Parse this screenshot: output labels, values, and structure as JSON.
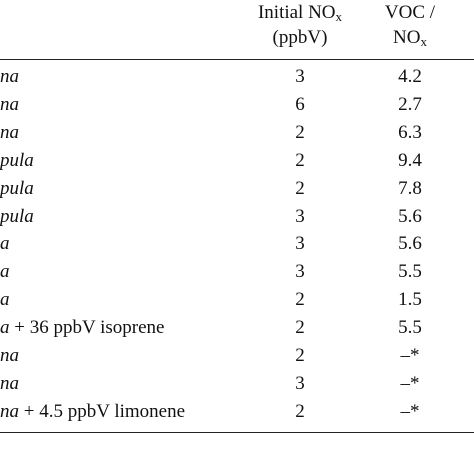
{
  "table": {
    "header": {
      "nox": {
        "text": "Initial NO",
        "sub": "x",
        "unit": "(ppbV)"
      },
      "ratio": {
        "line1": "VOC /",
        "text": "NO",
        "sub": "x"
      }
    },
    "rows": [
      {
        "species": "na",
        "note": null,
        "nox": 3,
        "ratio": 4.2
      },
      {
        "species": "na",
        "note": null,
        "nox": 6,
        "ratio": 2.7
      },
      {
        "species": "na",
        "note": null,
        "nox": 2,
        "ratio": 6.3
      },
      {
        "species": "pula",
        "note": null,
        "nox": 2,
        "ratio": 9.4
      },
      {
        "species": "pula",
        "note": null,
        "nox": 2,
        "ratio": 7.8
      },
      {
        "species": "pula",
        "note": null,
        "nox": 3,
        "ratio": 5.6
      },
      {
        "species": "a",
        "note": null,
        "nox": 3,
        "ratio": 5.6
      },
      {
        "species": "a",
        "note": null,
        "nox": 3,
        "ratio": 5.5
      },
      {
        "species": "a",
        "note": null,
        "nox": 2,
        "ratio": 1.5
      },
      {
        "species": "a",
        "note": "+ 36 ppbV isoprene",
        "nox": 2,
        "ratio": 5.5
      },
      {
        "species": "na",
        "note": null,
        "nox": 2,
        "ratio": "–*"
      },
      {
        "species": "na",
        "note": null,
        "nox": 3,
        "ratio": "–*"
      },
      {
        "species": "na",
        "note": "+ 4.5 ppbV limonene",
        "nox": 2,
        "ratio": "–*"
      }
    ]
  }
}
